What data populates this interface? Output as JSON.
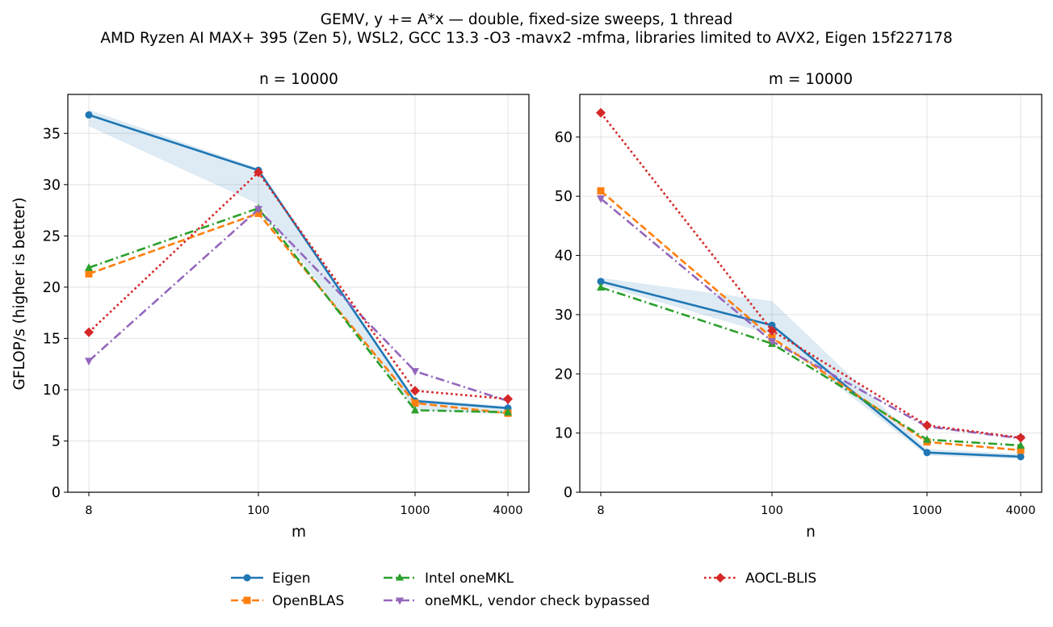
{
  "figure": {
    "title_line1": "GEMV, y += A*x — double, fixed-size sweeps, 1 thread",
    "title_line2": "AMD Ryzen AI MAX+ 395 (Zen 5), WSL2, GCC 13.3 -O3 -mavx2 -mfma, libraries limited to AVX2, Eigen 15f227178"
  },
  "colors": {
    "eigen": "#1f77b4",
    "openblas": "#ff7f0e",
    "onemkl": "#2ca02c",
    "onemkl_bypass": "#9467bd",
    "aocl": "#d62728",
    "band": "#1f77b4",
    "grid": "#b0b0b0"
  },
  "legend": {
    "placement": "bottom-center",
    "entries": [
      "Eigen",
      "OpenBLAS",
      "Intel oneMKL",
      "oneMKL, vendor check bypassed",
      "AOCL-BLIS"
    ]
  },
  "chart_data": [
    {
      "type": "line",
      "title": "n = 10000",
      "xlabel": "m",
      "ylabel": "GFLOP/s (higher is better)",
      "xscale": "log",
      "x": [
        8,
        100,
        1000,
        4000
      ],
      "xtick_labels": [
        "8",
        "100",
        "1000",
        "4000"
      ],
      "ylim": [
        0,
        38.8
      ],
      "yticks": [
        0,
        5,
        10,
        15,
        20,
        25,
        30,
        35
      ],
      "grid": true,
      "series": [
        {
          "name": "Eigen",
          "key": "eigen",
          "marker": "circle",
          "dash": "solid",
          "values": [
            36.8,
            31.4,
            8.9,
            8.2
          ]
        },
        {
          "name": "OpenBLAS",
          "key": "openblas",
          "marker": "square",
          "dash": "dashed",
          "values": [
            21.3,
            27.2,
            8.7,
            7.7
          ]
        },
        {
          "name": "Intel oneMKL",
          "key": "onemkl",
          "marker": "triangle-up",
          "dash": "dashdot",
          "values": [
            21.9,
            27.7,
            8.0,
            7.8
          ]
        },
        {
          "name": "oneMKL, vendor check bypassed",
          "key": "onemkl_bypass",
          "marker": "triangle-down",
          "dash": "dashdot",
          "values": [
            12.8,
            27.6,
            11.8,
            8.9
          ]
        },
        {
          "name": "AOCL-BLIS",
          "key": "aocl",
          "marker": "diamond",
          "dash": "dotted",
          "values": [
            15.6,
            31.2,
            9.9,
            9.1
          ]
        }
      ],
      "band": {
        "series": "Eigen",
        "lower": [
          35.7,
          28.1,
          8.0,
          7.6
        ],
        "upper": [
          37.3,
          31.6,
          9.1,
          8.4
        ]
      }
    },
    {
      "type": "line",
      "title": "m = 10000",
      "xlabel": "n",
      "ylabel": "",
      "xscale": "log",
      "x": [
        8,
        100,
        1000,
        4000
      ],
      "xtick_labels": [
        "8",
        "100",
        "1000",
        "4000"
      ],
      "ylim": [
        0,
        67.2
      ],
      "yticks": [
        0,
        10,
        20,
        30,
        40,
        50,
        60
      ],
      "grid": true,
      "series": [
        {
          "name": "Eigen",
          "key": "eigen",
          "marker": "circle",
          "dash": "solid",
          "values": [
            35.6,
            28.2,
            6.7,
            6.0
          ]
        },
        {
          "name": "OpenBLAS",
          "key": "openblas",
          "marker": "square",
          "dash": "dashed",
          "values": [
            50.9,
            26.1,
            8.5,
            7.1
          ]
        },
        {
          "name": "Intel oneMKL",
          "key": "onemkl",
          "marker": "triangle-up",
          "dash": "dashdot",
          "values": [
            34.6,
            25.1,
            8.9,
            7.9
          ]
        },
        {
          "name": "oneMKL, vendor check bypassed",
          "key": "onemkl_bypass",
          "marker": "triangle-down",
          "dash": "dashdot",
          "values": [
            49.6,
            25.5,
            11.1,
            9.1
          ]
        },
        {
          "name": "AOCL-BLIS",
          "key": "aocl",
          "marker": "diamond",
          "dash": "dotted",
          "values": [
            64.1,
            27.3,
            11.3,
            9.2
          ]
        }
      ],
      "band": {
        "series": "Eigen",
        "lower": [
          35.0,
          26.6,
          6.2,
          5.6
        ],
        "upper": [
          36.2,
          32.3,
          7.3,
          6.5
        ]
      }
    }
  ]
}
